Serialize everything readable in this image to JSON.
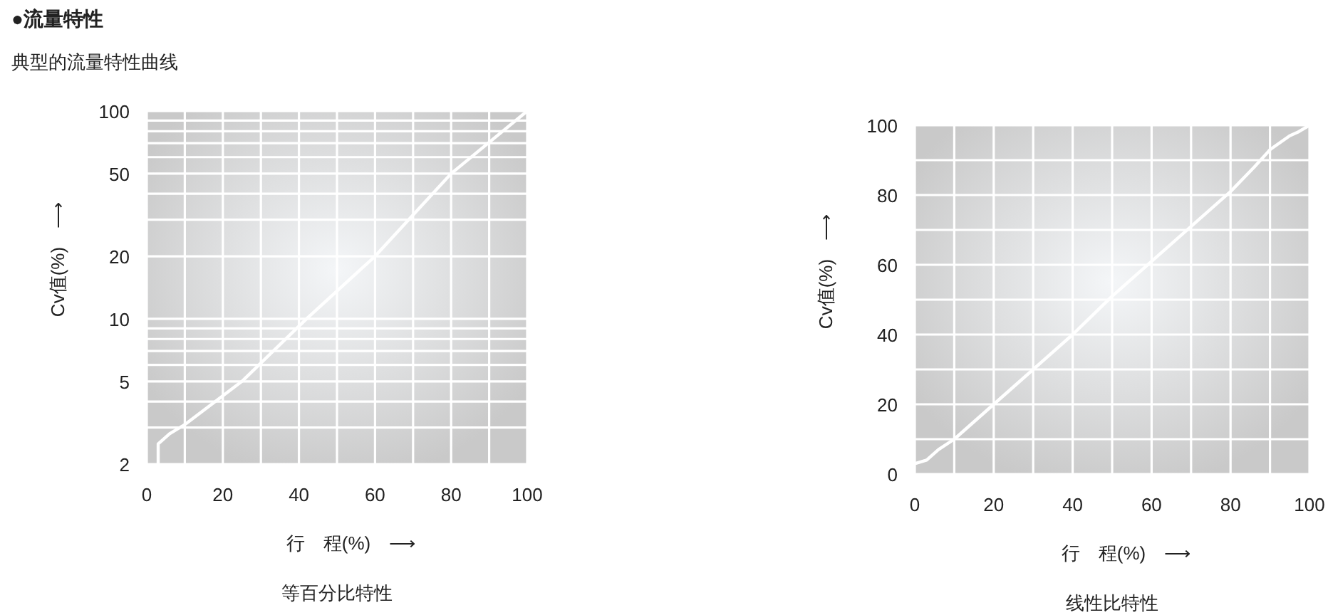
{
  "chart_data": [
    {
      "type": "line",
      "title": "●流量特性",
      "subtitle": "典型的流量特性曲线",
      "xlabel": "行　程(%)　⟶",
      "ylabel": "Cv值(%)　⟶",
      "log": "y",
      "grid": true,
      "marker": "none",
      "line_style": "solid",
      "xlim": [
        0,
        100
      ],
      "xticks": [
        0,
        {
          "value": 10,
          "label": null
        },
        20,
        {
          "value": 30,
          "label": null
        },
        40,
        {
          "value": 50,
          "label": null
        },
        60,
        {
          "value": 70,
          "label": null
        },
        80,
        {
          "value": 90,
          "label": null
        },
        100
      ],
      "ylim": [
        2,
        100
      ],
      "yticks": [
        2,
        {
          "value": 3,
          "label": null
        },
        {
          "value": 4,
          "label": null
        },
        5,
        {
          "value": 6,
          "label": null
        },
        {
          "value": 7,
          "label": null
        },
        {
          "value": 8,
          "label": null
        },
        {
          "value": 9,
          "label": null
        },
        10,
        20,
        {
          "value": 30,
          "label": null
        },
        {
          "value": 40,
          "label": null
        },
        50,
        {
          "value": 60,
          "label": null
        },
        {
          "value": 70,
          "label": null
        },
        {
          "value": 80,
          "label": null
        },
        {
          "value": 90,
          "label": null
        },
        100
      ],
      "series": [
        {
          "color": "#ffffff",
          "x": [
            3,
            3,
            6,
            10,
            25,
            42,
            60,
            80,
            100
          ],
          "values": [
            2,
            2.5,
            2.8,
            3.1,
            5,
            10,
            20,
            50,
            100
          ]
        }
      ],
      "annotations": [
        "等百分比特性"
      ]
    },
    {
      "type": "line",
      "xlabel": "行　程(%)　⟶",
      "ylabel": "Cv值(%)　⟶",
      "grid": true,
      "marker": "none",
      "line_style": "solid",
      "xlim": [
        0,
        100
      ],
      "xticks": [
        0,
        {
          "value": 10,
          "label": null
        },
        20,
        {
          "value": 30,
          "label": null
        },
        40,
        {
          "value": 50,
          "label": null
        },
        60,
        {
          "value": 70,
          "label": null
        },
        80,
        {
          "value": 90,
          "label": null
        },
        100
      ],
      "ylim": [
        0,
        100
      ],
      "yticks": [
        0,
        {
          "value": 10,
          "label": null
        },
        20,
        {
          "value": 30,
          "label": null
        },
        40,
        {
          "value": 50,
          "label": null
        },
        60,
        {
          "value": 70,
          "label": null
        },
        80,
        {
          "value": 90,
          "label": null
        },
        100
      ],
      "series": [
        {
          "color": "#ffffff",
          "x": [
            0,
            3,
            6,
            10,
            20,
            30,
            40,
            50,
            60,
            70,
            80,
            86,
            90,
            95,
            97,
            100
          ],
          "values": [
            3,
            4,
            7,
            10,
            20,
            30,
            40,
            51,
            61,
            71,
            81,
            88,
            93,
            97,
            98,
            100
          ]
        }
      ],
      "annotations": [
        "线性比特性"
      ]
    }
  ]
}
